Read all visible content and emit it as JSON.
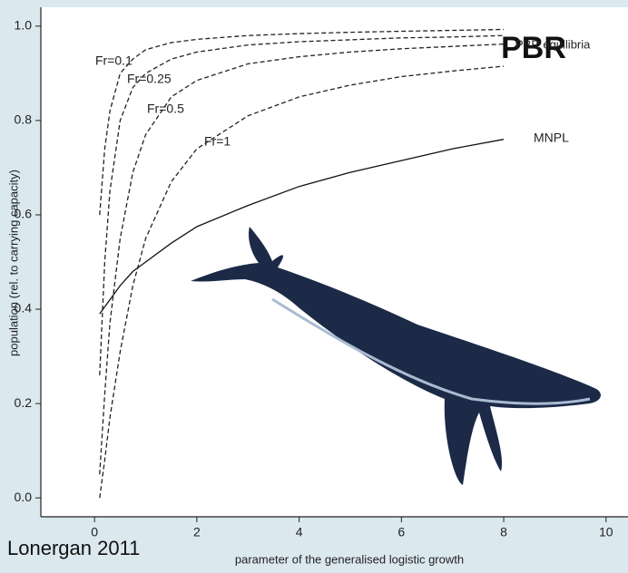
{
  "chart_data": {
    "type": "line",
    "title": "PBR",
    "x_label": "parameter of the generalised logistic growth",
    "y_label": "population (rel. to carrying capacity)",
    "annotations": [
      "PBR equilibria",
      "Lonergan 2011"
    ],
    "x": [
      0.1,
      0.2,
      0.3,
      0.5,
      0.75,
      1,
      1.5,
      2,
      3,
      4,
      5,
      6,
      7,
      8
    ],
    "series": [
      {
        "name": "Fr=0.1",
        "color": "#222222",
        "dash": true,
        "values": [
          0.6,
          0.74,
          0.82,
          0.9,
          0.93,
          0.95,
          0.965,
          0.972,
          0.98,
          0.984,
          0.987,
          0.989,
          0.991,
          0.993
        ]
      },
      {
        "name": "Fr=0.25",
        "color": "#222222",
        "dash": true,
        "values": [
          0.26,
          0.5,
          0.65,
          0.8,
          0.87,
          0.9,
          0.93,
          0.945,
          0.96,
          0.967,
          0.971,
          0.975,
          0.977,
          0.98
        ]
      },
      {
        "name": "Fr=0.5",
        "color": "#222222",
        "dash": true,
        "values": [
          0.05,
          0.22,
          0.37,
          0.55,
          0.69,
          0.77,
          0.85,
          0.885,
          0.92,
          0.935,
          0.945,
          0.952,
          0.957,
          0.962
        ]
      },
      {
        "name": "Fr=1",
        "color": "#222222",
        "dash": true,
        "values": [
          0.0,
          0.08,
          0.17,
          0.31,
          0.45,
          0.55,
          0.67,
          0.74,
          0.81,
          0.85,
          0.875,
          0.893,
          0.905,
          0.915
        ]
      },
      {
        "name": "MNPL",
        "color": "#111111",
        "dash": false,
        "values": [
          0.39,
          0.405,
          0.42,
          0.45,
          0.48,
          0.5,
          0.54,
          0.575,
          0.62,
          0.66,
          0.69,
          0.715,
          0.74,
          0.76
        ]
      }
    ],
    "xlim": [
      -1.05,
      10.43
    ],
    "ylim": [
      -0.04,
      1.04
    ],
    "xticks": [
      0,
      2,
      4,
      6,
      8,
      10
    ],
    "yticks": [
      {
        "value": 0,
        "label": "0.0"
      },
      0.2,
      0.4,
      0.6,
      0.8,
      {
        "value": 1,
        "label": "1.0"
      }
    ]
  }
}
